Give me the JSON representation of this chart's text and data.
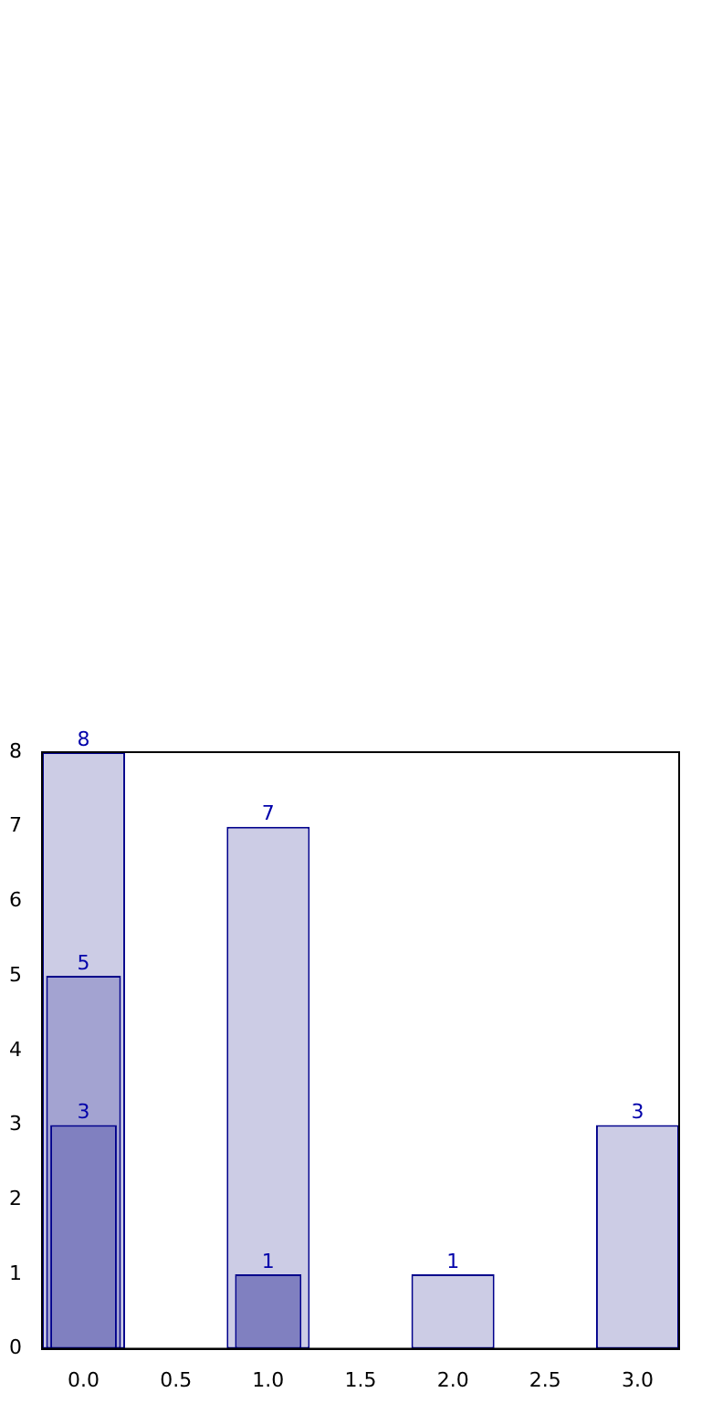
{
  "chart_data": {
    "type": "bar",
    "series": [
      {
        "color": "#8080c0",
        "x": [
          0,
          1
        ],
        "values": [
          3,
          1
        ]
      },
      {
        "color": "#a3a3d1",
        "x": [
          0
        ],
        "values": [
          5
        ]
      },
      {
        "color": "#ccccE5",
        "x": [
          0,
          1,
          2,
          3
        ],
        "values": [
          8,
          7,
          1,
          3
        ]
      }
    ],
    "xlim": [
      -0.225,
      3.225
    ],
    "xticks": [
      {
        "value": 0,
        "label": "0.0"
      },
      {
        "value": 0.5,
        "label": "0.5"
      },
      {
        "value": 1,
        "label": "1.0"
      },
      {
        "value": 1.5,
        "label": "1.5"
      },
      {
        "value": 2,
        "label": "2.0"
      },
      {
        "value": 2.5,
        "label": "2.5"
      },
      {
        "value": 3,
        "label": "3.0"
      }
    ],
    "ylim": [
      0,
      8
    ],
    "yticks": [
      0,
      1,
      2,
      3,
      4,
      5,
      6,
      7,
      8
    ],
    "data_labels": true,
    "grid": false,
    "legend": false
  }
}
